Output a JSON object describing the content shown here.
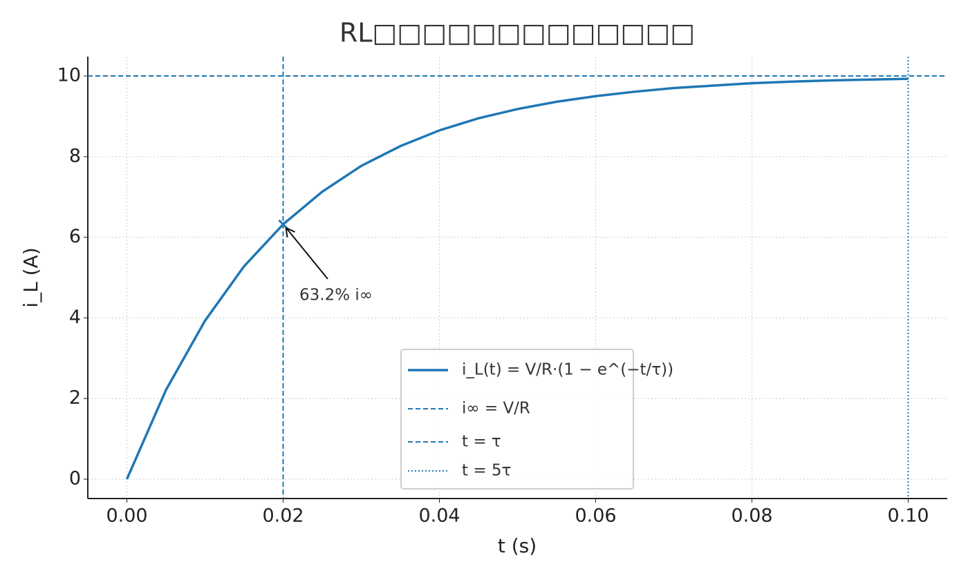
{
  "chart_data": {
    "type": "line",
    "title": "RL□□□□□□□□□□□□□",
    "x_label": "t (s)",
    "y_label": "i_L (A)",
    "x": [
      0,
      0.005,
      0.01,
      0.015,
      0.02,
      0.025,
      0.03,
      0.035,
      0.04,
      0.045,
      0.05,
      0.055,
      0.06,
      0.065,
      0.07,
      0.075,
      0.08,
      0.085,
      0.09,
      0.095,
      0.1
    ],
    "series": [
      {
        "name": "i_L(t) = V/R·(1 − e^(−t/τ))",
        "color": "#1f77b4",
        "values": [
          0,
          2.21,
          3.93,
          5.28,
          6.32,
          7.13,
          7.77,
          8.26,
          8.65,
          8.95,
          9.18,
          9.36,
          9.5,
          9.61,
          9.7,
          9.76,
          9.82,
          9.86,
          9.89,
          9.91,
          9.93
        ]
      }
    ],
    "reference_lines": [
      {
        "name": "i∞ = V/R",
        "orientation": "horizontal",
        "value": 10,
        "style": "dashed",
        "color": "#1f77b4"
      },
      {
        "name": "t = τ",
        "orientation": "vertical",
        "value": 0.02,
        "style": "dashed",
        "color": "#1f77b4"
      },
      {
        "name": "t = 5τ",
        "orientation": "vertical",
        "value": 0.1,
        "style": "dotted",
        "color": "#1f77b4"
      }
    ],
    "marker": {
      "x": 0.02,
      "y": 6.32
    },
    "annotation": "63.2% i∞",
    "xlim": [
      -0.005,
      0.105
    ],
    "ylim": [
      -0.48,
      10.48
    ],
    "xticks": [
      {
        "value": 0,
        "label": "0.00"
      },
      0.02,
      0.04,
      0.06,
      0.08,
      {
        "value": 0.1,
        "label": "0.10"
      }
    ],
    "yticks": [
      0,
      2,
      4,
      6,
      8,
      10
    ],
    "grid": true,
    "legend": "lower center"
  }
}
